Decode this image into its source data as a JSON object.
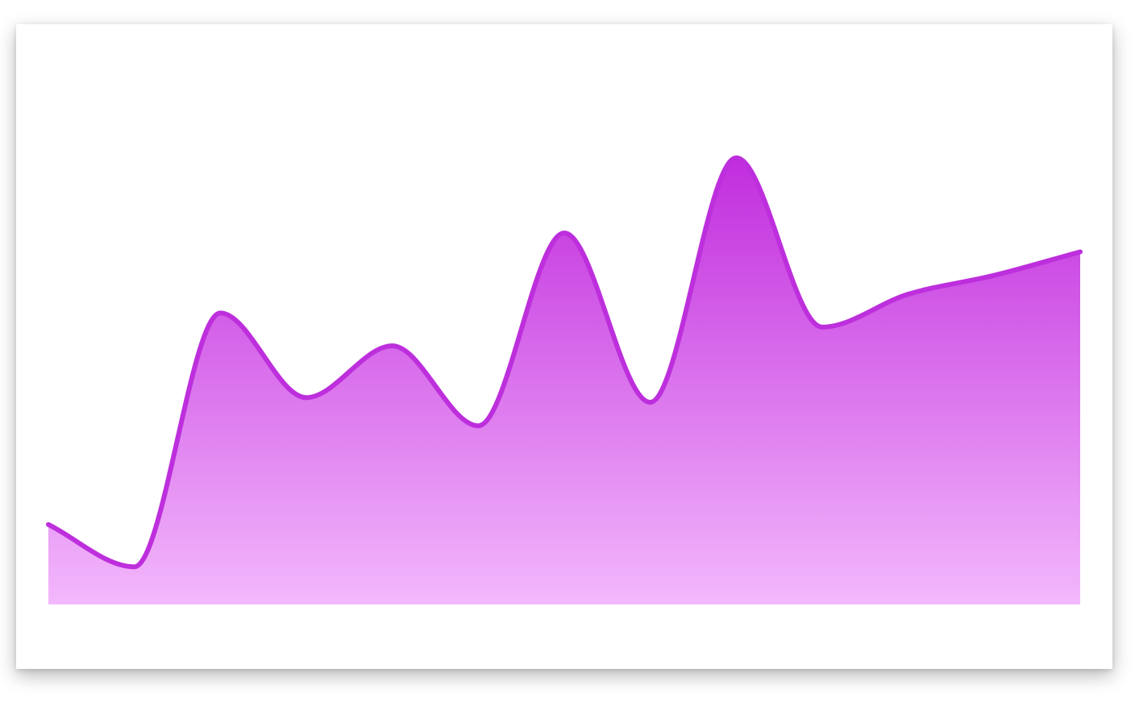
{
  "chart_data": {
    "type": "area",
    "x": [
      1,
      2,
      3,
      4,
      5,
      6,
      7,
      8,
      9,
      10,
      11,
      12,
      13
    ],
    "y": [
      17,
      8,
      62,
      44,
      55,
      38,
      79,
      43,
      95,
      59,
      66,
      70,
      75
    ],
    "ylim": [
      0,
      120
    ],
    "grid": false,
    "legend": "none",
    "colors": {
      "line": "#bd2fdc",
      "fill_top": "#c12ddd",
      "fill_bottom": "#f3b8fc"
    }
  }
}
